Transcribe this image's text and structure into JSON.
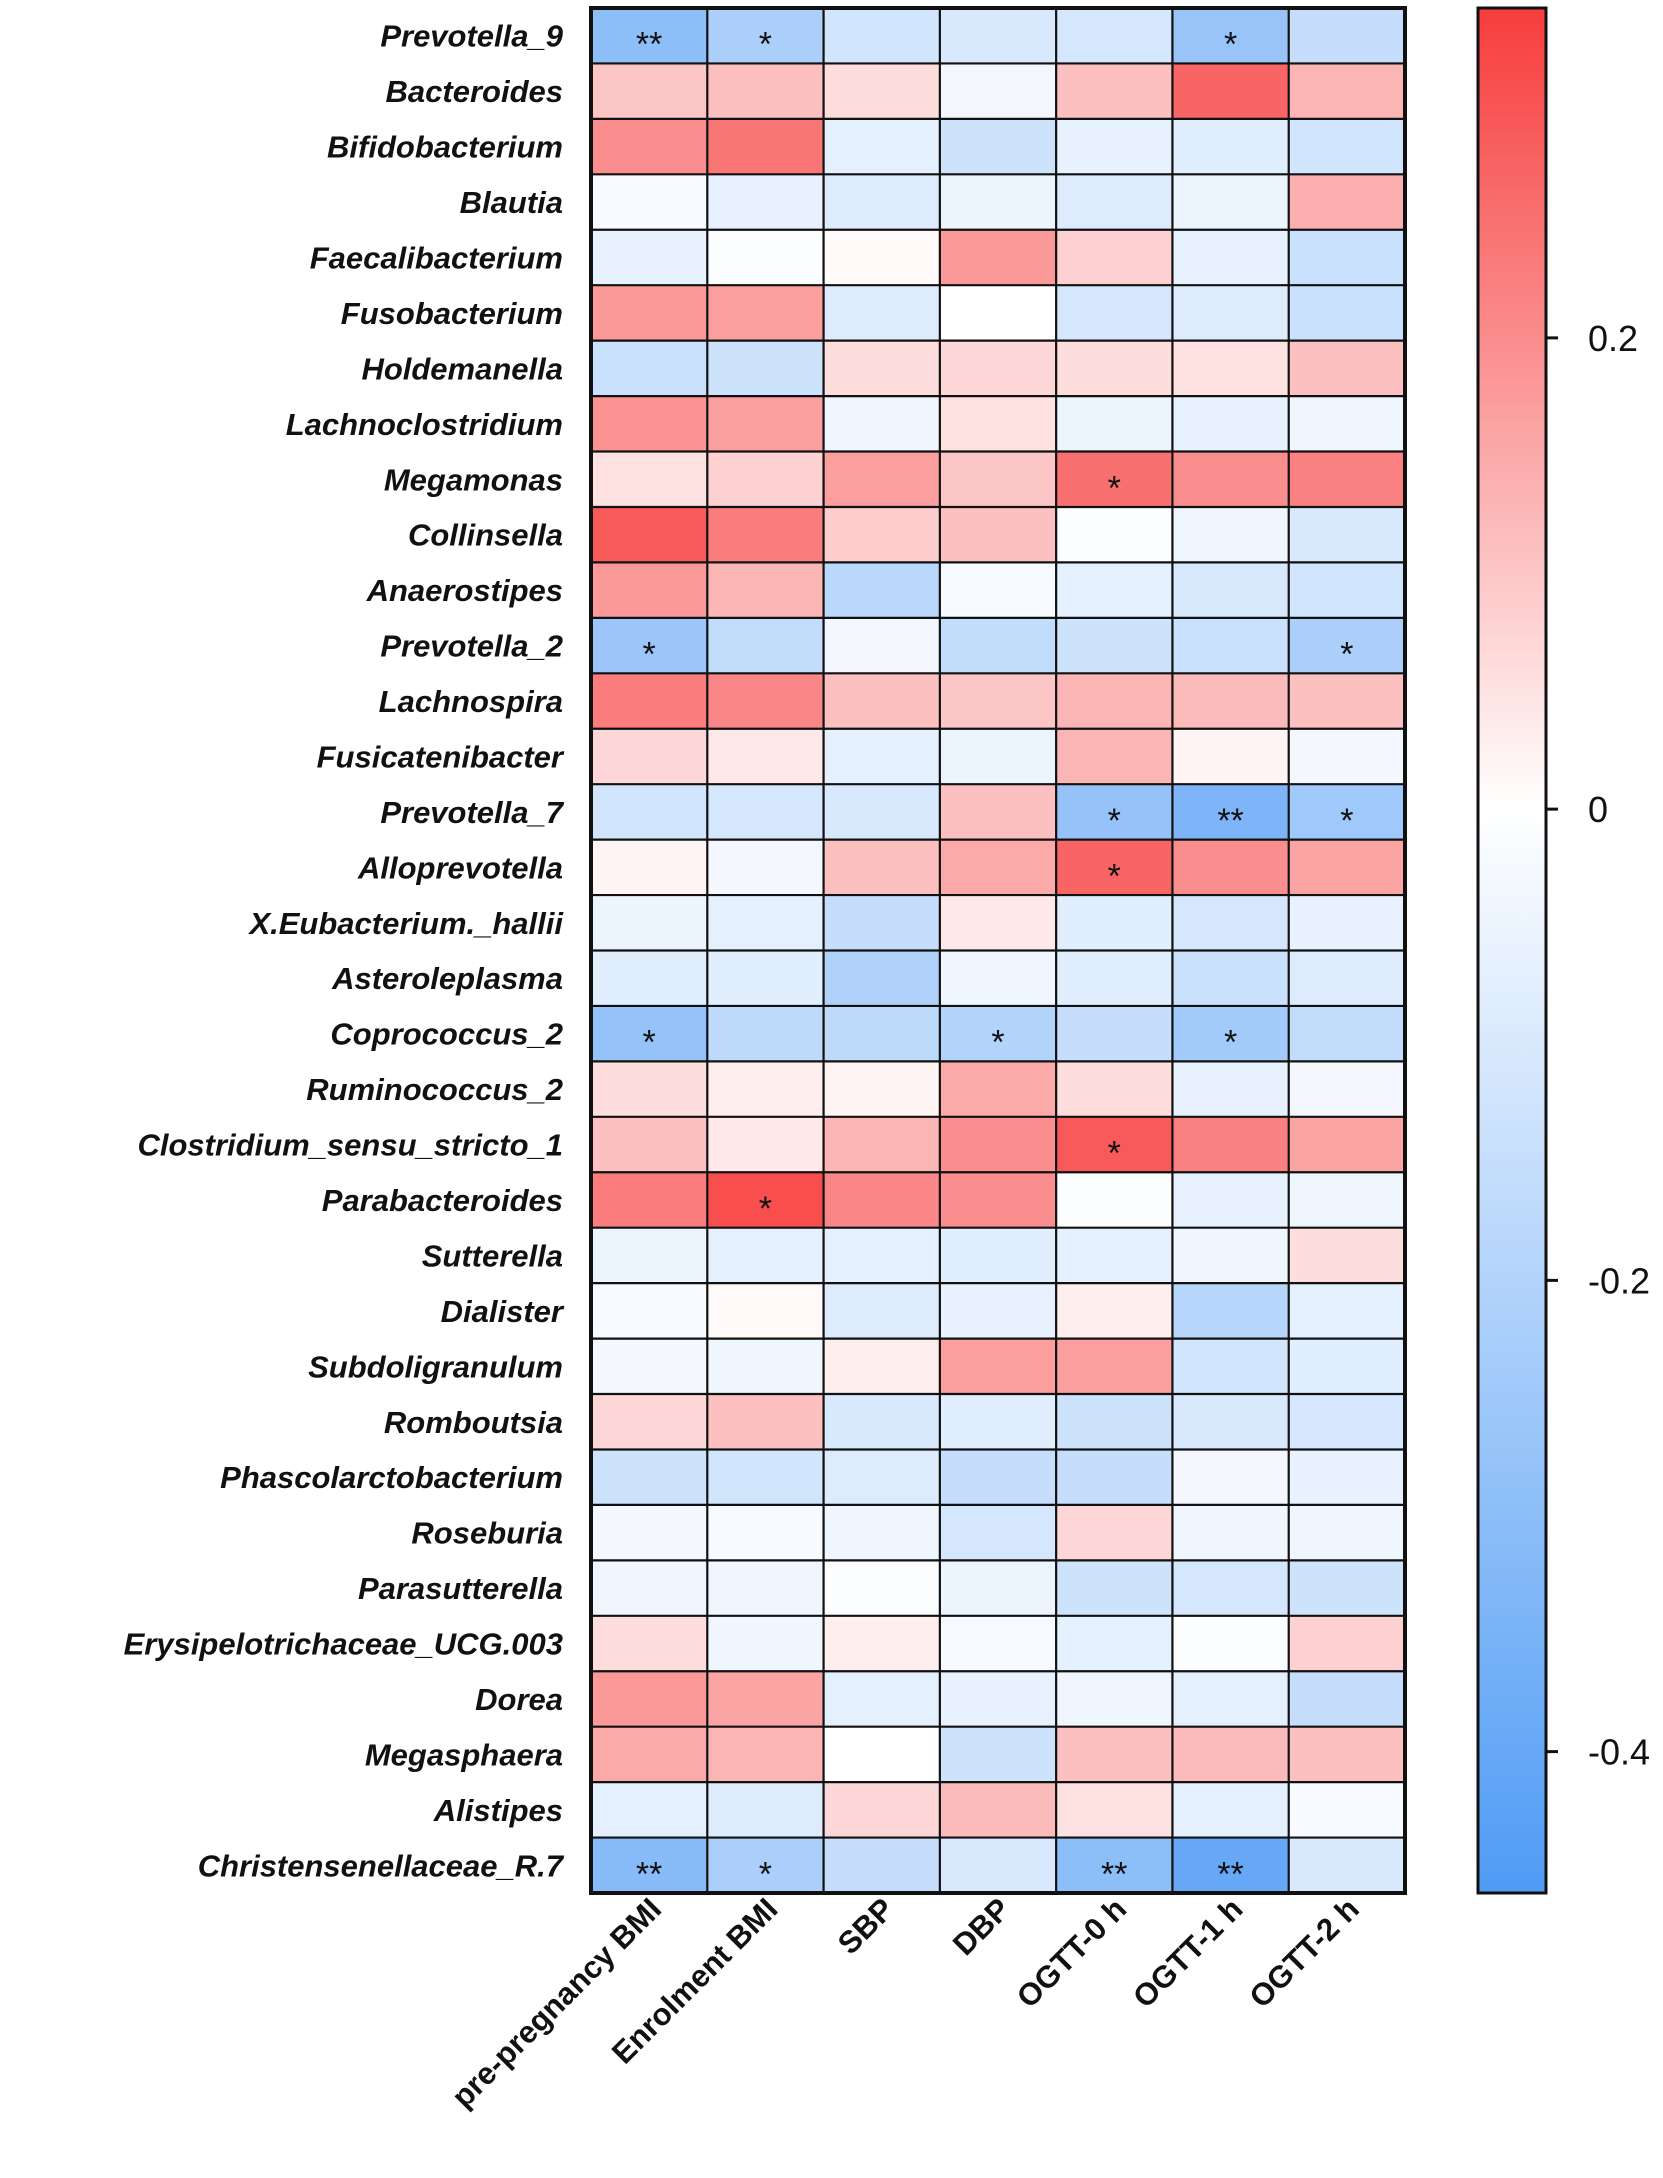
{
  "chart_data": {
    "type": "heatmap",
    "title": "",
    "xlabel": "",
    "ylabel": "",
    "colormap": {
      "low_color": "#4f9bf5",
      "mid_color": "#ffffff",
      "high_color": "#f73d3d",
      "range": [
        -0.46,
        0.34
      ],
      "ticks": [
        0.2,
        0,
        -0.2,
        -0.4
      ],
      "tick_labels": [
        "0.2",
        "0",
        "-0.2",
        "-0.4"
      ]
    },
    "columns": [
      "pre-pregnancy BMI",
      "Enrolment BMI",
      "SBP",
      "DBP",
      "OGTT-0 h",
      "OGTT-1 h",
      "OGTT-2 h"
    ],
    "rows": [
      {
        "name": "Prevotella_9",
        "values": [
          -0.3,
          -0.22,
          -0.12,
          -0.1,
          -0.11,
          -0.27,
          -0.15
        ],
        "stars": [
          "**",
          "*",
          "",
          "",
          "",
          "*",
          ""
        ]
      },
      {
        "name": "Bacteroides",
        "values": [
          0.1,
          0.11,
          0.06,
          -0.03,
          0.11,
          0.27,
          0.13
        ],
        "stars": [
          "",
          "",
          "",
          "",
          "",
          "",
          ""
        ]
      },
      {
        "name": "Bifidobacterium",
        "values": [
          0.2,
          0.24,
          -0.07,
          -0.13,
          -0.06,
          -0.08,
          -0.12
        ],
        "stars": [
          "",
          "",
          "",
          "",
          "",
          "",
          ""
        ]
      },
      {
        "name": "Blautia",
        "values": [
          -0.02,
          -0.06,
          -0.09,
          -0.05,
          -0.09,
          -0.05,
          0.14
        ],
        "stars": [
          "",
          "",
          "",
          "",
          "",
          "",
          ""
        ]
      },
      {
        "name": "Faecalibacterium",
        "values": [
          -0.06,
          -0.01,
          0.01,
          0.18,
          0.08,
          -0.06,
          -0.14
        ],
        "stars": [
          "",
          "",
          "",
          "",
          "",
          "",
          ""
        ]
      },
      {
        "name": "Fusobacterium",
        "values": [
          0.18,
          0.17,
          -0.09,
          0.0,
          -0.11,
          -0.09,
          -0.14
        ],
        "stars": [
          "",
          "",
          "",
          "",
          "",
          "",
          ""
        ]
      },
      {
        "name": "Holdemanella",
        "values": [
          -0.14,
          -0.13,
          0.06,
          0.07,
          0.06,
          0.05,
          0.11
        ],
        "stars": [
          "",
          "",
          "",
          "",
          "",
          "",
          ""
        ]
      },
      {
        "name": "Lachnoclostridium",
        "values": [
          0.19,
          0.17,
          -0.04,
          0.05,
          -0.05,
          -0.06,
          -0.04
        ],
        "stars": [
          "",
          "",
          "",
          "",
          "",
          "",
          ""
        ]
      },
      {
        "name": "Megamonas",
        "values": [
          0.05,
          0.08,
          0.17,
          0.1,
          0.25,
          0.2,
          0.22
        ],
        "stars": [
          "",
          "",
          "",
          "",
          "*",
          "",
          ""
        ]
      },
      {
        "name": "Collinsella",
        "values": [
          0.29,
          0.23,
          0.09,
          0.11,
          -0.01,
          -0.04,
          -0.1
        ],
        "stars": [
          "",
          "",
          "",
          "",
          "",
          "",
          ""
        ]
      },
      {
        "name": "Anaerostipes",
        "values": [
          0.18,
          0.13,
          -0.18,
          -0.02,
          -0.07,
          -0.1,
          -0.12
        ],
        "stars": [
          "",
          "",
          "",
          "",
          "",
          "",
          ""
        ]
      },
      {
        "name": "Prevotella_2",
        "values": [
          -0.26,
          -0.16,
          -0.03,
          -0.16,
          -0.13,
          -0.14,
          -0.22
        ],
        "stars": [
          "*",
          "",
          "",
          "",
          "",
          "",
          "*"
        ]
      },
      {
        "name": "Lachnospira",
        "values": [
          0.23,
          0.21,
          0.11,
          0.1,
          0.13,
          0.12,
          0.11
        ],
        "stars": [
          "",
          "",
          "",
          "",
          "",
          "",
          ""
        ]
      },
      {
        "name": "Fusicatenibacter",
        "values": [
          0.07,
          0.04,
          -0.07,
          -0.05,
          0.13,
          0.02,
          -0.03
        ],
        "stars": [
          "",
          "",
          "",
          "",
          "",
          "",
          ""
        ]
      },
      {
        "name": "Prevotella_7",
        "values": [
          -0.12,
          -0.11,
          -0.1,
          0.11,
          -0.28,
          -0.34,
          -0.25
        ],
        "stars": [
          "",
          "",
          "",
          "",
          "*",
          "**",
          "*"
        ]
      },
      {
        "name": "Alloprevotella",
        "values": [
          0.02,
          -0.03,
          0.11,
          0.15,
          0.27,
          0.2,
          0.16
        ],
        "stars": [
          "",
          "",
          "",
          "",
          "*",
          "",
          ""
        ]
      },
      {
        "name": "X.Eubacterium._hallii",
        "values": [
          -0.05,
          -0.07,
          -0.15,
          0.04,
          -0.08,
          -0.11,
          -0.06
        ],
        "stars": [
          "",
          "",
          "",
          "",
          "",
          "",
          ""
        ]
      },
      {
        "name": "Asteroleplasma",
        "values": [
          -0.08,
          -0.08,
          -0.21,
          -0.04,
          -0.08,
          -0.14,
          -0.09
        ],
        "stars": [
          "",
          "",
          "",
          "",
          "",
          "",
          ""
        ]
      },
      {
        "name": "Coprococcus_2",
        "values": [
          -0.28,
          -0.17,
          -0.17,
          -0.2,
          -0.15,
          -0.24,
          -0.16
        ],
        "stars": [
          "*",
          "",
          "",
          "*",
          "",
          "*",
          ""
        ]
      },
      {
        "name": "Ruminococcus_2",
        "values": [
          0.06,
          0.03,
          0.02,
          0.15,
          0.06,
          -0.06,
          -0.03
        ],
        "stars": [
          "",
          "",
          "",
          "",
          "",
          "",
          ""
        ]
      },
      {
        "name": "Clostridium_sensu_stricto_1",
        "values": [
          0.11,
          0.04,
          0.13,
          0.2,
          0.29,
          0.22,
          0.16
        ],
        "stars": [
          "",
          "",
          "",
          "",
          "*",
          "",
          ""
        ]
      },
      {
        "name": "Parabacteroides",
        "values": [
          0.23,
          0.31,
          0.21,
          0.2,
          -0.01,
          -0.06,
          -0.04
        ],
        "stars": [
          "",
          "*",
          "",
          "",
          "",
          "",
          ""
        ]
      },
      {
        "name": "Sutterella",
        "values": [
          -0.05,
          -0.07,
          -0.07,
          -0.08,
          -0.07,
          -0.04,
          0.06
        ],
        "stars": [
          "",
          "",
          "",
          "",
          "",
          "",
          ""
        ]
      },
      {
        "name": "Dialister",
        "values": [
          -0.02,
          0.01,
          -0.09,
          -0.06,
          0.03,
          -0.19,
          -0.07
        ],
        "stars": [
          "",
          "",
          "",
          "",
          "",
          "",
          ""
        ]
      },
      {
        "name": "Subdoligranulum",
        "values": [
          -0.03,
          -0.04,
          0.03,
          0.17,
          0.17,
          -0.12,
          -0.08
        ],
        "stars": [
          "",
          "",
          "",
          "",
          "",
          "",
          ""
        ]
      },
      {
        "name": "Romboutsia",
        "values": [
          0.07,
          0.11,
          -0.1,
          -0.08,
          -0.13,
          -0.1,
          -0.11
        ],
        "stars": [
          "",
          "",
          "",
          "",
          "",
          "",
          ""
        ]
      },
      {
        "name": "Phascolarctobacterium",
        "values": [
          -0.13,
          -0.12,
          -0.09,
          -0.15,
          -0.15,
          -0.03,
          -0.06
        ],
        "stars": [
          "",
          "",
          "",
          "",
          "",
          "",
          ""
        ]
      },
      {
        "name": "Roseburia",
        "values": [
          -0.03,
          -0.02,
          -0.04,
          -0.11,
          0.07,
          -0.04,
          -0.04
        ],
        "stars": [
          "",
          "",
          "",
          "",
          "",
          "",
          ""
        ]
      },
      {
        "name": "Parasutterella",
        "values": [
          -0.04,
          -0.04,
          -0.01,
          -0.05,
          -0.13,
          -0.11,
          -0.13
        ],
        "stars": [
          "",
          "",
          "",
          "",
          "",
          "",
          ""
        ]
      },
      {
        "name": "Erysipelotrichaceae_UCG.003",
        "values": [
          0.06,
          -0.04,
          0.03,
          -0.02,
          -0.07,
          -0.01,
          0.08
        ],
        "stars": [
          "",
          "",
          "",
          "",
          "",
          "",
          ""
        ]
      },
      {
        "name": "Dorea",
        "values": [
          0.18,
          0.16,
          -0.07,
          -0.06,
          -0.04,
          -0.07,
          -0.15
        ],
        "stars": [
          "",
          "",
          "",
          "",
          "",
          "",
          ""
        ]
      },
      {
        "name": "Megasphaera",
        "values": [
          0.15,
          0.13,
          0.0,
          -0.13,
          0.11,
          0.12,
          0.11
        ],
        "stars": [
          "",
          "",
          "",
          "",
          "",
          "",
          ""
        ]
      },
      {
        "name": "Alistipes",
        "values": [
          -0.07,
          -0.09,
          0.07,
          0.12,
          0.05,
          -0.07,
          -0.02
        ],
        "stars": [
          "",
          "",
          "",
          "",
          "",
          "",
          ""
        ]
      },
      {
        "name": "Christensenellaceae_R.7",
        "values": [
          -0.31,
          -0.22,
          -0.15,
          -0.1,
          -0.3,
          -0.4,
          -0.1
        ],
        "stars": [
          "**",
          "*",
          "",
          "",
          "**",
          "**",
          ""
        ]
      }
    ]
  }
}
